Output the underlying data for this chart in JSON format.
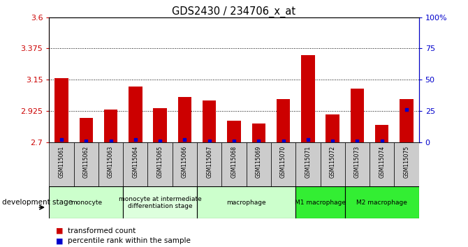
{
  "title": "GDS2430 / 234706_x_at",
  "samples": [
    "GSM115061",
    "GSM115062",
    "GSM115063",
    "GSM115064",
    "GSM115065",
    "GSM115066",
    "GSM115067",
    "GSM115068",
    "GSM115069",
    "GSM115070",
    "GSM115071",
    "GSM115072",
    "GSM115073",
    "GSM115074",
    "GSM115075"
  ],
  "transformed_count": [
    3.162,
    2.872,
    2.932,
    3.1,
    2.945,
    3.025,
    3.0,
    2.852,
    2.835,
    3.01,
    3.325,
    2.9,
    3.085,
    2.825,
    3.01
  ],
  "percentile_rank": [
    2,
    1,
    1,
    2,
    1,
    2,
    1,
    1,
    1,
    1,
    2,
    1,
    1,
    1,
    26
  ],
  "y_min": 2.7,
  "y_max": 3.6,
  "y_ticks_left": [
    2.7,
    2.925,
    3.15,
    3.375,
    3.6
  ],
  "y_tick_labels_left": [
    "2.7",
    "2.925",
    "3.15",
    "3.375",
    "3.6"
  ],
  "y_ticks_right": [
    0,
    25,
    50,
    75,
    100
  ],
  "y_tick_labels_right": [
    "0",
    "25",
    "50",
    "75",
    "100%"
  ],
  "bar_color": "#cc0000",
  "dot_color": "#0000cc",
  "left_axis_color": "#cc0000",
  "right_axis_color": "#0000cc",
  "grid_color": "black",
  "sample_box_color": "#cccccc",
  "groups": [
    {
      "label": "monocyte",
      "start": 0,
      "end": 2,
      "color": "#ccffcc"
    },
    {
      "label": "monocyte at intermediate\ndifferentiation stage",
      "start": 3,
      "end": 5,
      "color": "#ddffdd"
    },
    {
      "label": "macrophage",
      "start": 6,
      "end": 9,
      "color": "#ccffcc"
    },
    {
      "label": "M1 macrophage",
      "start": 10,
      "end": 11,
      "color": "#33ee33"
    },
    {
      "label": "M2 macrophage",
      "start": 12,
      "end": 14,
      "color": "#33ee33"
    }
  ],
  "development_stage_label": "development stage",
  "legend_red_label": "transformed count",
  "legend_blue_label": "percentile rank within the sample"
}
